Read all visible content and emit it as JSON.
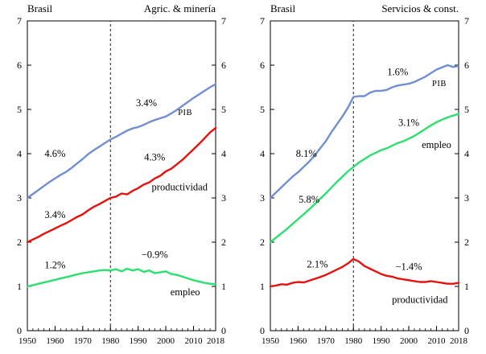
{
  "page": {
    "background": "#ffffff"
  },
  "colors": {
    "pib": "#6f8fd0",
    "productividad": "#e8100c",
    "empleo": "#2cdf6e",
    "axis": "#000000"
  },
  "chart_data": [
    {
      "type": "line",
      "header_left": "Brasil",
      "header_right": "Agric. & minería",
      "xlim": [
        1950,
        2018
      ],
      "ylim": [
        0,
        7
      ],
      "x_ticks": [
        1950,
        1960,
        1970,
        1980,
        1990,
        2000,
        2010,
        2018
      ],
      "y_ticks": [
        0,
        1,
        2,
        3,
        4,
        5,
        6,
        7
      ],
      "minor_x_step": 2,
      "dashed_vline": 1980,
      "grid": false,
      "series": [
        {
          "name": "PIB",
          "color_key": "pib",
          "x": [
            1950,
            1952,
            1954,
            1956,
            1958,
            1960,
            1962,
            1964,
            1966,
            1968,
            1970,
            1972,
            1974,
            1976,
            1978,
            1980,
            1982,
            1984,
            1986,
            1988,
            1990,
            1992,
            1994,
            1996,
            1998,
            2000,
            2002,
            2004,
            2006,
            2008,
            2010,
            2012,
            2014,
            2016,
            2018
          ],
          "y": [
            3.0,
            3.09,
            3.18,
            3.27,
            3.36,
            3.44,
            3.52,
            3.59,
            3.68,
            3.78,
            3.88,
            3.99,
            4.08,
            4.16,
            4.24,
            4.32,
            4.38,
            4.45,
            4.52,
            4.57,
            4.6,
            4.65,
            4.71,
            4.76,
            4.8,
            4.84,
            4.91,
            4.99,
            5.08,
            5.17,
            5.26,
            5.34,
            5.42,
            5.5,
            5.57
          ]
        },
        {
          "name": "productividad",
          "color_key": "productividad",
          "x": [
            1950,
            1952,
            1954,
            1956,
            1958,
            1960,
            1962,
            1964,
            1966,
            1968,
            1970,
            1972,
            1974,
            1976,
            1978,
            1980,
            1982,
            1984,
            1986,
            1988,
            1990,
            1992,
            1994,
            1996,
            1998,
            2000,
            2002,
            2004,
            2006,
            2008,
            2010,
            2012,
            2014,
            2016,
            2018
          ],
          "y": [
            2.0,
            2.06,
            2.12,
            2.19,
            2.25,
            2.31,
            2.37,
            2.43,
            2.5,
            2.57,
            2.63,
            2.72,
            2.8,
            2.86,
            2.93,
            3.0,
            3.03,
            3.1,
            3.08,
            3.16,
            3.22,
            3.3,
            3.35,
            3.44,
            3.5,
            3.6,
            3.66,
            3.76,
            3.86,
            3.98,
            4.1,
            4.22,
            4.35,
            4.48,
            4.58
          ]
        },
        {
          "name": "empleo",
          "color_key": "empleo",
          "x": [
            1950,
            1952,
            1954,
            1956,
            1958,
            1960,
            1962,
            1964,
            1966,
            1968,
            1970,
            1972,
            1974,
            1976,
            1978,
            1980,
            1982,
            1984,
            1986,
            1988,
            1990,
            1992,
            1994,
            1996,
            1998,
            2000,
            2002,
            2004,
            2006,
            2008,
            2010,
            2012,
            2014,
            2016,
            2018
          ],
          "y": [
            1.0,
            1.03,
            1.06,
            1.09,
            1.12,
            1.15,
            1.18,
            1.21,
            1.24,
            1.27,
            1.3,
            1.32,
            1.34,
            1.36,
            1.37,
            1.36,
            1.39,
            1.34,
            1.4,
            1.36,
            1.39,
            1.33,
            1.36,
            1.3,
            1.32,
            1.34,
            1.28,
            1.26,
            1.22,
            1.18,
            1.14,
            1.11,
            1.08,
            1.06,
            1.05
          ]
        }
      ],
      "annotations": [
        {
          "text": "4.6%",
          "x": 1960,
          "y": 4.0,
          "small": false
        },
        {
          "text": "3.4%",
          "x": 1993,
          "y": 5.15,
          "small": false
        },
        {
          "text": "PIB",
          "x": 2007,
          "y": 4.95,
          "small": true
        },
        {
          "text": "3.4%",
          "x": 1960,
          "y": 2.62,
          "small": false
        },
        {
          "text": "4.3%",
          "x": 1996,
          "y": 3.92,
          "small": false
        },
        {
          "text": "productividad",
          "x": 2005,
          "y": 3.25,
          "small": false
        },
        {
          "text": "1.2%",
          "x": 1960,
          "y": 1.48,
          "small": false
        },
        {
          "text": "−0.9%",
          "x": 1996,
          "y": 1.72,
          "small": false
        },
        {
          "text": "empleo",
          "x": 2007,
          "y": 0.87,
          "small": false
        }
      ]
    },
    {
      "type": "line",
      "header_left": "Brasil",
      "header_right": "Servicios & const.",
      "xlim": [
        1950,
        2018
      ],
      "ylim": [
        0,
        7
      ],
      "x_ticks": [
        1950,
        1960,
        1970,
        1980,
        1990,
        2000,
        2010,
        2018
      ],
      "y_ticks": [
        0,
        1,
        2,
        3,
        4,
        5,
        6,
        7
      ],
      "minor_x_step": 2,
      "dashed_vline": 1980,
      "grid": false,
      "series": [
        {
          "name": "PIB",
          "color_key": "pib",
          "x": [
            1950,
            1952,
            1954,
            1956,
            1958,
            1960,
            1962,
            1964,
            1966,
            1968,
            1970,
            1972,
            1974,
            1976,
            1978,
            1980,
            1982,
            1984,
            1986,
            1988,
            1990,
            1992,
            1994,
            1996,
            1998,
            2000,
            2002,
            2004,
            2006,
            2008,
            2010,
            2012,
            2014,
            2016,
            2018
          ],
          "y": [
            3.0,
            3.12,
            3.24,
            3.36,
            3.48,
            3.58,
            3.7,
            3.82,
            3.96,
            4.12,
            4.28,
            4.48,
            4.66,
            4.84,
            5.04,
            5.28,
            5.3,
            5.3,
            5.38,
            5.42,
            5.42,
            5.44,
            5.5,
            5.54,
            5.56,
            5.58,
            5.62,
            5.68,
            5.74,
            5.82,
            5.9,
            5.95,
            6.0,
            5.96,
            5.98
          ]
        },
        {
          "name": "empleo",
          "color_key": "empleo",
          "x": [
            1950,
            1952,
            1954,
            1956,
            1958,
            1960,
            1962,
            1964,
            1966,
            1968,
            1970,
            1972,
            1974,
            1976,
            1978,
            1980,
            1982,
            1984,
            1986,
            1988,
            1990,
            1992,
            1994,
            1996,
            1998,
            2000,
            2002,
            2004,
            2006,
            2008,
            2010,
            2012,
            2014,
            2016,
            2018
          ],
          "y": [
            2.0,
            2.1,
            2.2,
            2.3,
            2.41,
            2.52,
            2.63,
            2.74,
            2.86,
            2.98,
            3.1,
            3.23,
            3.36,
            3.48,
            3.6,
            3.7,
            3.8,
            3.88,
            3.96,
            4.02,
            4.08,
            4.12,
            4.18,
            4.24,
            4.28,
            4.34,
            4.4,
            4.48,
            4.56,
            4.64,
            4.71,
            4.77,
            4.82,
            4.86,
            4.9
          ]
        },
        {
          "name": "productividad",
          "color_key": "productividad",
          "x": [
            1950,
            1952,
            1954,
            1956,
            1958,
            1960,
            1962,
            1964,
            1966,
            1968,
            1970,
            1972,
            1974,
            1976,
            1978,
            1980,
            1982,
            1984,
            1986,
            1988,
            1990,
            1992,
            1994,
            1996,
            1998,
            2000,
            2002,
            2004,
            2006,
            2008,
            2010,
            2012,
            2014,
            2016,
            2018
          ],
          "y": [
            1.0,
            1.02,
            1.05,
            1.04,
            1.08,
            1.1,
            1.09,
            1.13,
            1.17,
            1.21,
            1.26,
            1.32,
            1.38,
            1.44,
            1.52,
            1.62,
            1.56,
            1.46,
            1.4,
            1.34,
            1.28,
            1.24,
            1.22,
            1.18,
            1.16,
            1.14,
            1.12,
            1.1,
            1.1,
            1.12,
            1.1,
            1.08,
            1.06,
            1.06,
            1.08
          ]
        }
      ],
      "annotations": [
        {
          "text": "8.1%",
          "x": 1963,
          "y": 4.0,
          "small": false
        },
        {
          "text": "1.6%",
          "x": 1996,
          "y": 5.85,
          "small": false
        },
        {
          "text": "PIB",
          "x": 2011,
          "y": 5.6,
          "small": true
        },
        {
          "text": "5.8%",
          "x": 1964,
          "y": 2.96,
          "small": false
        },
        {
          "text": "3.1%",
          "x": 2000,
          "y": 4.7,
          "small": false
        },
        {
          "text": "empleo",
          "x": 2010,
          "y": 4.2,
          "small": false
        },
        {
          "text": "2.1%",
          "x": 1967,
          "y": 1.5,
          "small": false
        },
        {
          "text": "−1.4%",
          "x": 2000,
          "y": 1.45,
          "small": false
        },
        {
          "text": "productividad",
          "x": 2004,
          "y": 0.7,
          "small": false
        }
      ]
    }
  ]
}
